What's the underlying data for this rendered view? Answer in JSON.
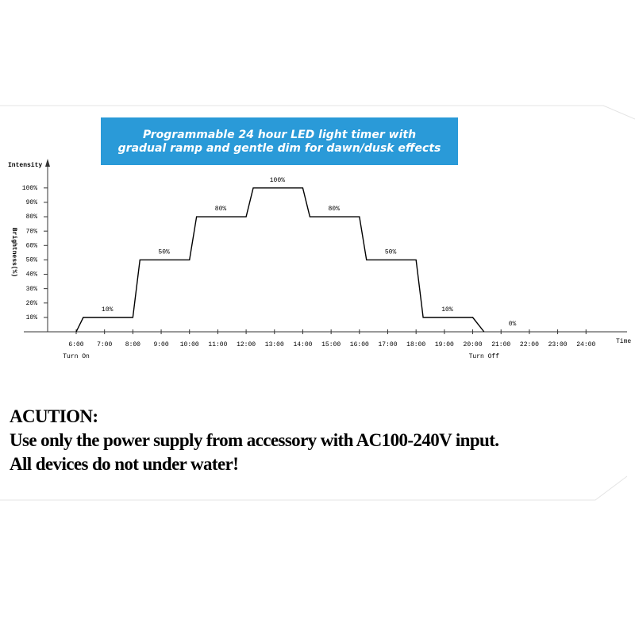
{
  "chart_data": {
    "type": "line",
    "title": [
      "Programmable 24 hour LED light timer with",
      "gradual ramp and gentle dim for dawn/dusk effects"
    ],
    "y_label": "Intensity",
    "y_axis_label": "Brightness(%)",
    "x_label": "Time",
    "x": [
      6,
      6.25,
      8,
      8.25,
      10,
      10.25,
      12,
      12.25,
      14,
      14.25,
      16,
      16.25,
      18,
      18.25,
      20,
      20.4
    ],
    "values": [
      0,
      10,
      10,
      50,
      50,
      80,
      80,
      100,
      100,
      80,
      80,
      50,
      50,
      10,
      10,
      0
    ],
    "color": "#000000",
    "xlim": [
      4.15,
      25.45
    ],
    "ylim": [
      0,
      117
    ],
    "xticks": [
      {
        "value": 6,
        "label": "6:00"
      },
      {
        "value": 7,
        "label": "7:00"
      },
      {
        "value": 8,
        "label": "8:00"
      },
      {
        "value": 9,
        "label": "9:00"
      },
      {
        "value": 10,
        "label": "10:00"
      },
      {
        "value": 11,
        "label": "11:00"
      },
      {
        "value": 12,
        "label": "12:00"
      },
      {
        "value": 13,
        "label": "13:00"
      },
      {
        "value": 14,
        "label": "14:00"
      },
      {
        "value": 15,
        "label": "15:00"
      },
      {
        "value": 16,
        "label": "16:00"
      },
      {
        "value": 17,
        "label": "17:00"
      },
      {
        "value": 18,
        "label": "18:00"
      },
      {
        "value": 19,
        "label": "19:00"
      },
      {
        "value": 20,
        "label": "20:00"
      },
      {
        "value": 21,
        "label": "21:00"
      },
      {
        "value": 22,
        "label": "22:00"
      },
      {
        "value": 23,
        "label": "23:00"
      },
      {
        "value": 24,
        "label": "24:00"
      }
    ],
    "yticks": [
      {
        "value": 10,
        "label": "10%"
      },
      {
        "value": 20,
        "label": "20%"
      },
      {
        "value": 30,
        "label": "30%"
      },
      {
        "value": 40,
        "label": "40%"
      },
      {
        "value": 50,
        "label": "50%"
      },
      {
        "value": 60,
        "label": "60%"
      },
      {
        "value": 70,
        "label": "70%"
      },
      {
        "value": 80,
        "label": "80%"
      },
      {
        "value": 90,
        "label": "90%"
      },
      {
        "value": 100,
        "label": "100%"
      }
    ],
    "plateau_labels": [
      {
        "x": 7.1,
        "value": 10,
        "label": "10%"
      },
      {
        "x": 9.1,
        "value": 50,
        "label": "50%"
      },
      {
        "x": 11.1,
        "value": 80,
        "label": "80%"
      },
      {
        "x": 13.1,
        "value": 100,
        "label": "100%"
      },
      {
        "x": 15.1,
        "value": 80,
        "label": "80%"
      },
      {
        "x": 17.1,
        "value": 50,
        "label": "50%"
      },
      {
        "x": 19.1,
        "value": 10,
        "label": "10%"
      },
      {
        "x": 21.4,
        "value": 0,
        "label": "0%"
      }
    ],
    "x_annotations": [
      {
        "x": 6,
        "label": "Turn On"
      },
      {
        "x": 20.4,
        "label": "Turn Off"
      }
    ]
  },
  "notice": {
    "heading": "ACUTION:",
    "lines": [
      "Use only the power supply from accessory with AC100-240V input.",
      "All devices do not under water!"
    ]
  }
}
